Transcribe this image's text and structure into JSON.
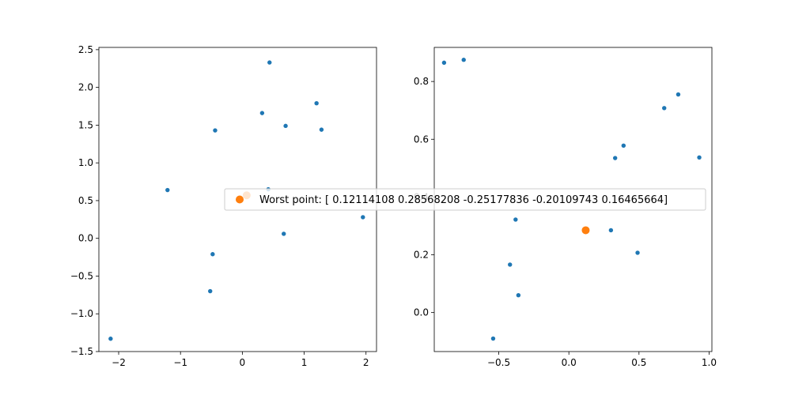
{
  "colors": {
    "points": "#1f77b4",
    "worst_point": "#ff7f0e"
  },
  "chart_data": [
    {
      "type": "scatter",
      "title": "",
      "xlabel": "",
      "ylabel": "",
      "xlim": [
        -2.32,
        2.17
      ],
      "ylim": [
        -1.5,
        2.53
      ],
      "xticks": [
        "−2",
        "−1",
        "0",
        "1",
        "2"
      ],
      "xtick_values": [
        -2,
        -1,
        0,
        1,
        2
      ],
      "yticks": [
        "−1.5",
        "−1.0",
        "−0.5",
        "0.0",
        "0.5",
        "1.0",
        "1.5",
        "2.0",
        "2.5"
      ],
      "ytick_values": [
        -1.5,
        -1.0,
        -0.5,
        0.0,
        0.5,
        1.0,
        1.5,
        2.0,
        2.5
      ],
      "grid": false,
      "series": [
        {
          "role": "points",
          "marker_size": "small",
          "points": [
            [
              0.44,
              2.33
            ],
            [
              -0.44,
              1.43
            ],
            [
              0.32,
              1.66
            ],
            [
              0.7,
              1.49
            ],
            [
              1.2,
              1.79
            ],
            [
              1.28,
              1.44
            ],
            [
              -1.21,
              0.64
            ],
            [
              0.42,
              0.65
            ],
            [
              1.95,
              0.28
            ],
            [
              0.67,
              0.06
            ],
            [
              -0.48,
              -0.21
            ],
            [
              -0.52,
              -0.7
            ],
            [
              -2.13,
              -1.33
            ]
          ]
        },
        {
          "role": "worst_point",
          "marker_size": "large",
          "points": [
            [
              0.07,
              0.57
            ]
          ]
        }
      ]
    },
    {
      "type": "scatter",
      "title": "",
      "xlabel": "",
      "ylabel": "",
      "xlim": [
        -0.96,
        1.02
      ],
      "ylim": [
        -0.135,
        0.918
      ],
      "xticks": [
        "−0.5",
        "0.0",
        "0.5",
        "1.0"
      ],
      "xtick_values": [
        -0.5,
        0.0,
        0.5,
        1.0
      ],
      "yticks": [
        "0.0",
        "0.2",
        "0.4",
        "0.6",
        "0.8"
      ],
      "ytick_values": [
        0.0,
        0.2,
        0.4,
        0.6,
        0.8
      ],
      "grid": false,
      "series": [
        {
          "role": "points",
          "marker_size": "small",
          "points": [
            [
              -0.89,
              0.865
            ],
            [
              -0.75,
              0.875
            ],
            [
              0.78,
              0.755
            ],
            [
              0.68,
              0.708
            ],
            [
              0.39,
              0.578
            ],
            [
              0.33,
              0.535
            ],
            [
              0.93,
              0.537
            ],
            [
              -0.38,
              0.322
            ],
            [
              0.3,
              0.285
            ],
            [
              0.49,
              0.207
            ],
            [
              -0.42,
              0.166
            ],
            [
              -0.36,
              0.06
            ],
            [
              -0.54,
              -0.09
            ]
          ]
        },
        {
          "role": "worst_point",
          "marker_size": "large",
          "points": [
            [
              0.12,
              0.285
            ]
          ]
        }
      ]
    }
  ],
  "legend": {
    "placement": "center",
    "label": "Worst point: [ 0.12114108  0.28568208 -0.25177836 -0.20109743  0.16465664]",
    "marker_color": "#ff7f0e"
  }
}
